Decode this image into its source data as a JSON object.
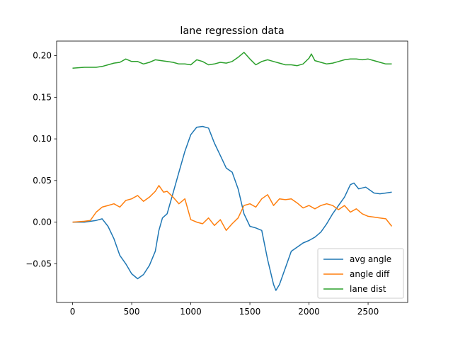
{
  "chart_data": {
    "type": "line",
    "title": "lane regression data",
    "xlabel": "",
    "ylabel": "",
    "xlim": [
      -135,
      2835
    ],
    "ylim": [
      -0.0965,
      0.2175
    ],
    "xticks": [
      0,
      500,
      1000,
      1500,
      2000,
      2500
    ],
    "xtick_labels": [
      "0",
      "500",
      "1000",
      "1500",
      "2000",
      "2500"
    ],
    "yticks": [
      -0.05,
      0.0,
      0.05,
      0.1,
      0.15,
      0.2
    ],
    "ytick_labels": [
      "−0.05",
      "0.00",
      "0.05",
      "0.10",
      "0.15",
      "0.20"
    ],
    "grid": false,
    "legend_position": "lower right",
    "series": [
      {
        "name": "avg angle",
        "color": "#1f77b4",
        "points": [
          [
            0,
            0.0
          ],
          [
            100,
            0.0
          ],
          [
            200,
            0.002
          ],
          [
            250,
            0.004
          ],
          [
            300,
            -0.005
          ],
          [
            350,
            -0.02
          ],
          [
            400,
            -0.04
          ],
          [
            450,
            -0.05
          ],
          [
            500,
            -0.062
          ],
          [
            550,
            -0.068
          ],
          [
            600,
            -0.063
          ],
          [
            650,
            -0.052
          ],
          [
            700,
            -0.035
          ],
          [
            730,
            -0.01
          ],
          [
            760,
            0.005
          ],
          [
            800,
            0.01
          ],
          [
            850,
            0.035
          ],
          [
            900,
            0.06
          ],
          [
            950,
            0.085
          ],
          [
            1000,
            0.105
          ],
          [
            1050,
            0.114
          ],
          [
            1100,
            0.115
          ],
          [
            1150,
            0.113
          ],
          [
            1200,
            0.095
          ],
          [
            1250,
            0.08
          ],
          [
            1300,
            0.065
          ],
          [
            1350,
            0.06
          ],
          [
            1400,
            0.04
          ],
          [
            1450,
            0.01
          ],
          [
            1500,
            -0.005
          ],
          [
            1550,
            -0.007
          ],
          [
            1600,
            -0.01
          ],
          [
            1650,
            -0.045
          ],
          [
            1700,
            -0.075
          ],
          [
            1720,
            -0.082
          ],
          [
            1750,
            -0.075
          ],
          [
            1800,
            -0.055
          ],
          [
            1850,
            -0.035
          ],
          [
            1900,
            -0.03
          ],
          [
            1950,
            -0.025
          ],
          [
            2000,
            -0.022
          ],
          [
            2050,
            -0.018
          ],
          [
            2100,
            -0.012
          ],
          [
            2150,
            -0.002
          ],
          [
            2200,
            0.01
          ],
          [
            2250,
            0.02
          ],
          [
            2300,
            0.03
          ],
          [
            2350,
            0.045
          ],
          [
            2380,
            0.047
          ],
          [
            2420,
            0.04
          ],
          [
            2480,
            0.042
          ],
          [
            2550,
            0.035
          ],
          [
            2600,
            0.034
          ],
          [
            2650,
            0.035
          ],
          [
            2700,
            0.036
          ]
        ]
      },
      {
        "name": "angle diff",
        "color": "#ff7f0e",
        "points": [
          [
            0,
            0.0
          ],
          [
            100,
            0.001
          ],
          [
            150,
            0.002
          ],
          [
            200,
            0.012
          ],
          [
            250,
            0.018
          ],
          [
            300,
            0.02
          ],
          [
            350,
            0.022
          ],
          [
            400,
            0.018
          ],
          [
            450,
            0.026
          ],
          [
            500,
            0.028
          ],
          [
            550,
            0.032
          ],
          [
            600,
            0.025
          ],
          [
            650,
            0.03
          ],
          [
            700,
            0.037
          ],
          [
            730,
            0.044
          ],
          [
            770,
            0.036
          ],
          [
            800,
            0.037
          ],
          [
            850,
            0.03
          ],
          [
            900,
            0.022
          ],
          [
            950,
            0.028
          ],
          [
            1000,
            0.003
          ],
          [
            1050,
            0.0
          ],
          [
            1100,
            -0.002
          ],
          [
            1150,
            0.005
          ],
          [
            1200,
            -0.004
          ],
          [
            1250,
            0.003
          ],
          [
            1300,
            -0.01
          ],
          [
            1350,
            -0.002
          ],
          [
            1400,
            0.005
          ],
          [
            1450,
            0.02
          ],
          [
            1500,
            0.022
          ],
          [
            1550,
            0.018
          ],
          [
            1600,
            0.028
          ],
          [
            1650,
            0.033
          ],
          [
            1700,
            0.02
          ],
          [
            1750,
            0.028
          ],
          [
            1800,
            0.027
          ],
          [
            1850,
            0.028
          ],
          [
            1900,
            0.023
          ],
          [
            1950,
            0.017
          ],
          [
            2000,
            0.02
          ],
          [
            2050,
            0.016
          ],
          [
            2100,
            0.02
          ],
          [
            2150,
            0.022
          ],
          [
            2200,
            0.02
          ],
          [
            2250,
            0.015
          ],
          [
            2300,
            0.02
          ],
          [
            2350,
            0.012
          ],
          [
            2400,
            0.016
          ],
          [
            2450,
            0.01
          ],
          [
            2500,
            0.007
          ],
          [
            2550,
            0.006
          ],
          [
            2600,
            0.005
          ],
          [
            2650,
            0.004
          ],
          [
            2700,
            -0.005
          ]
        ]
      },
      {
        "name": "lane dist",
        "color": "#2ca02c",
        "points": [
          [
            0,
            0.185
          ],
          [
            100,
            0.186
          ],
          [
            200,
            0.186
          ],
          [
            250,
            0.187
          ],
          [
            300,
            0.189
          ],
          [
            350,
            0.191
          ],
          [
            400,
            0.192
          ],
          [
            450,
            0.196
          ],
          [
            500,
            0.193
          ],
          [
            550,
            0.193
          ],
          [
            600,
            0.19
          ],
          [
            650,
            0.192
          ],
          [
            700,
            0.195
          ],
          [
            750,
            0.194
          ],
          [
            800,
            0.193
          ],
          [
            850,
            0.192
          ],
          [
            900,
            0.19
          ],
          [
            950,
            0.19
          ],
          [
            1000,
            0.189
          ],
          [
            1050,
            0.195
          ],
          [
            1100,
            0.193
          ],
          [
            1150,
            0.189
          ],
          [
            1200,
            0.19
          ],
          [
            1250,
            0.192
          ],
          [
            1300,
            0.191
          ],
          [
            1350,
            0.193
          ],
          [
            1400,
            0.198
          ],
          [
            1450,
            0.204
          ],
          [
            1500,
            0.196
          ],
          [
            1550,
            0.189
          ],
          [
            1600,
            0.193
          ],
          [
            1650,
            0.195
          ],
          [
            1700,
            0.193
          ],
          [
            1750,
            0.191
          ],
          [
            1800,
            0.189
          ],
          [
            1850,
            0.189
          ],
          [
            1900,
            0.188
          ],
          [
            1950,
            0.19
          ],
          [
            2000,
            0.197
          ],
          [
            2020,
            0.202
          ],
          [
            2050,
            0.194
          ],
          [
            2100,
            0.192
          ],
          [
            2150,
            0.19
          ],
          [
            2200,
            0.191
          ],
          [
            2250,
            0.193
          ],
          [
            2300,
            0.195
          ],
          [
            2350,
            0.196
          ],
          [
            2400,
            0.196
          ],
          [
            2450,
            0.195
          ],
          [
            2500,
            0.196
          ],
          [
            2550,
            0.194
          ],
          [
            2600,
            0.192
          ],
          [
            2650,
            0.19
          ],
          [
            2700,
            0.19
          ]
        ]
      }
    ]
  }
}
